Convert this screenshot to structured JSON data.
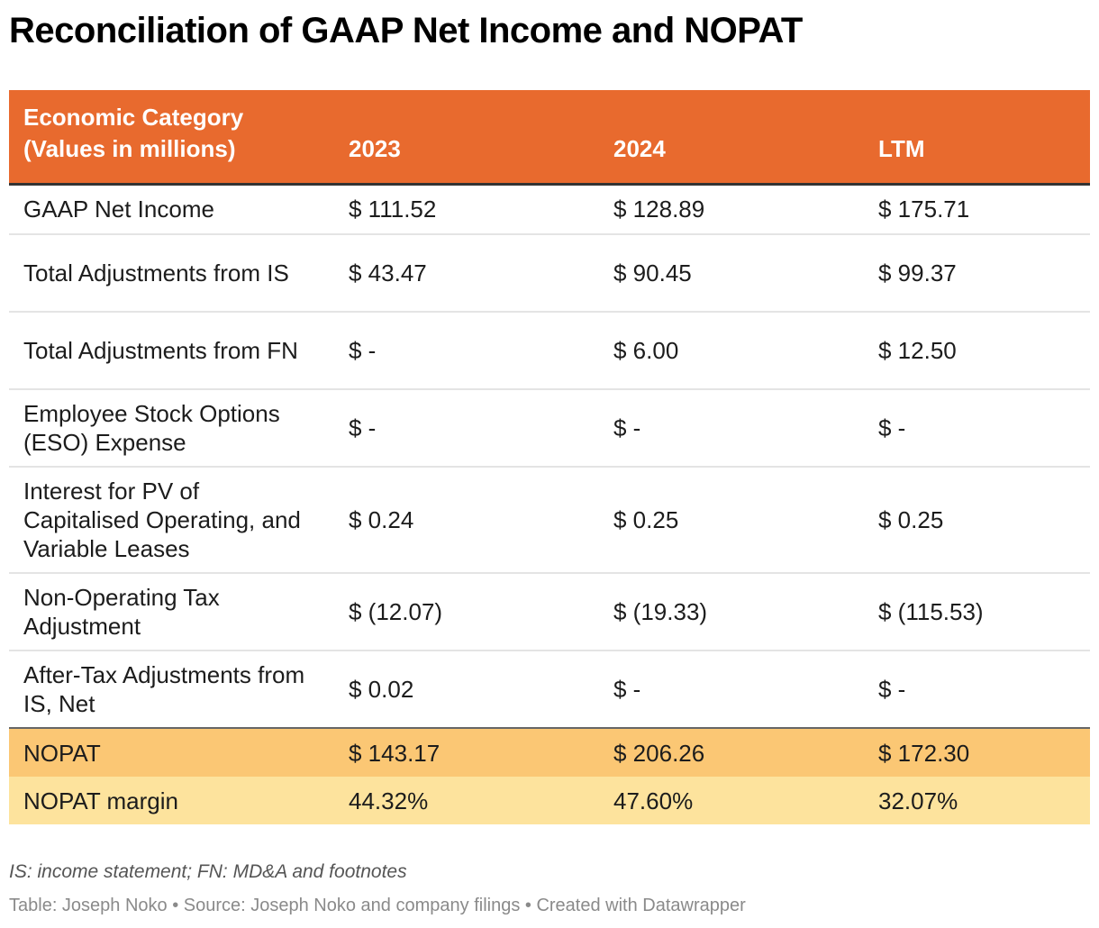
{
  "title": "Reconciliation of GAAP Net Income and NOPAT",
  "colors": {
    "header_bg": "#e86a2e",
    "header_text": "#ffffff",
    "nopat_row_bg": "#fbc774",
    "margin_row_bg": "#fde39d",
    "row_divider": "#e4e4e4"
  },
  "chart_data": {
    "type": "table",
    "columns": [
      "Economic Category\n(Values in millions)",
      "2023",
      "2024",
      "LTM"
    ],
    "rows": [
      {
        "label": "GAAP Net Income",
        "values": [
          "$ 111.52",
          "$ 128.89",
          "$ 175.71"
        ]
      },
      {
        "label": "Total Adjustments from IS",
        "values": [
          "$ 43.47",
          "$ 90.45",
          "$ 99.37"
        ]
      },
      {
        "label": "Total Adjustments from FN",
        "values": [
          "$ -",
          "$ 6.00",
          "$ 12.50"
        ]
      },
      {
        "label": "Employee Stock Options (ESO) Expense",
        "values": [
          "$ -",
          "$ -",
          "$ -"
        ]
      },
      {
        "label": "Interest for PV of Capitalised Operating, and Variable Leases",
        "values": [
          "$ 0.24",
          "$ 0.25",
          "$ 0.25"
        ]
      },
      {
        "label": "Non-Operating Tax Adjustment",
        "values": [
          "$ (12.07)",
          "$ (19.33)",
          "$ (115.53)"
        ]
      },
      {
        "label": "After-Tax Adjustments from IS, Net",
        "values": [
          "$ 0.02",
          "$ -",
          "$ -"
        ]
      },
      {
        "label": "NOPAT",
        "values": [
          "$ 143.17",
          "$ 206.26",
          "$ 172.30"
        ]
      },
      {
        "label": "NOPAT margin",
        "values": [
          "44.32%",
          "47.60%",
          "32.07%"
        ]
      }
    ]
  },
  "notes": {
    "footnote": "IS: income statement; FN: MD&A and footnotes",
    "credit": "Table: Joseph Noko • Source: Joseph Noko and company filings • Created with Datawrapper"
  }
}
